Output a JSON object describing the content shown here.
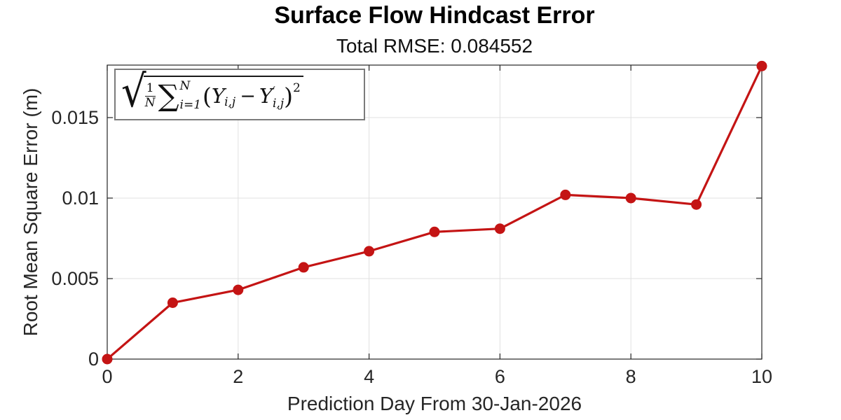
{
  "title": "Surface Flow Hindcast Error",
  "subtitle": "Total RMSE: 0.084552",
  "formula": {
    "sqrt_sign": "√",
    "frac_num": "1",
    "frac_den": "N",
    "sum_sign": "∑",
    "sum_sup": "N",
    "sum_sub": "i=1",
    "open_paren": "(",
    "term1_base": "Y",
    "term1_sub": "i,j",
    "minus": "−",
    "term2_base": "Y",
    "term2_prime": "′",
    "term2_sub": "i,j",
    "close_paren": ")",
    "exponent": "2"
  },
  "colors": {
    "line": "#c41414",
    "grid": "#e0e0e0",
    "axis": "#262626",
    "formula_box_border": "#7b7b7b",
    "background": "#ffffff"
  },
  "chart_data": {
    "type": "line",
    "title": "Surface Flow Hindcast Error",
    "subtitle": "Total RMSE: 0.084552",
    "xlabel": "Prediction Day From 30-Jan-2026",
    "ylabel": "Root Mean Square Error (m)",
    "x": [
      0,
      1,
      2,
      3,
      4,
      5,
      6,
      7,
      8,
      9,
      10
    ],
    "values": [
      0,
      0.0035,
      0.0043,
      0.0057,
      0.0067,
      0.0079,
      0.0081,
      0.0102,
      0.01,
      0.0096,
      0.0182
    ],
    "xlim": [
      0,
      10
    ],
    "ylim": [
      0,
      0.01826
    ],
    "xticks": [
      0,
      2,
      4,
      6,
      8,
      10
    ],
    "xtick_labels": [
      "0",
      "2",
      "4",
      "6",
      "8",
      "10"
    ],
    "yticks": [
      0,
      0.005,
      0.01,
      0.015
    ],
    "ytick_labels": [
      "0",
      "0.005",
      "0.01",
      "0.015"
    ],
    "grid": true,
    "legend": null,
    "line_color": "#c41414",
    "marker": "filled-circle",
    "annotation": "sqrt((1/N) * sum_{i=1}^{N} (Y_{i,j} - Y'_{i,j})^2)"
  }
}
